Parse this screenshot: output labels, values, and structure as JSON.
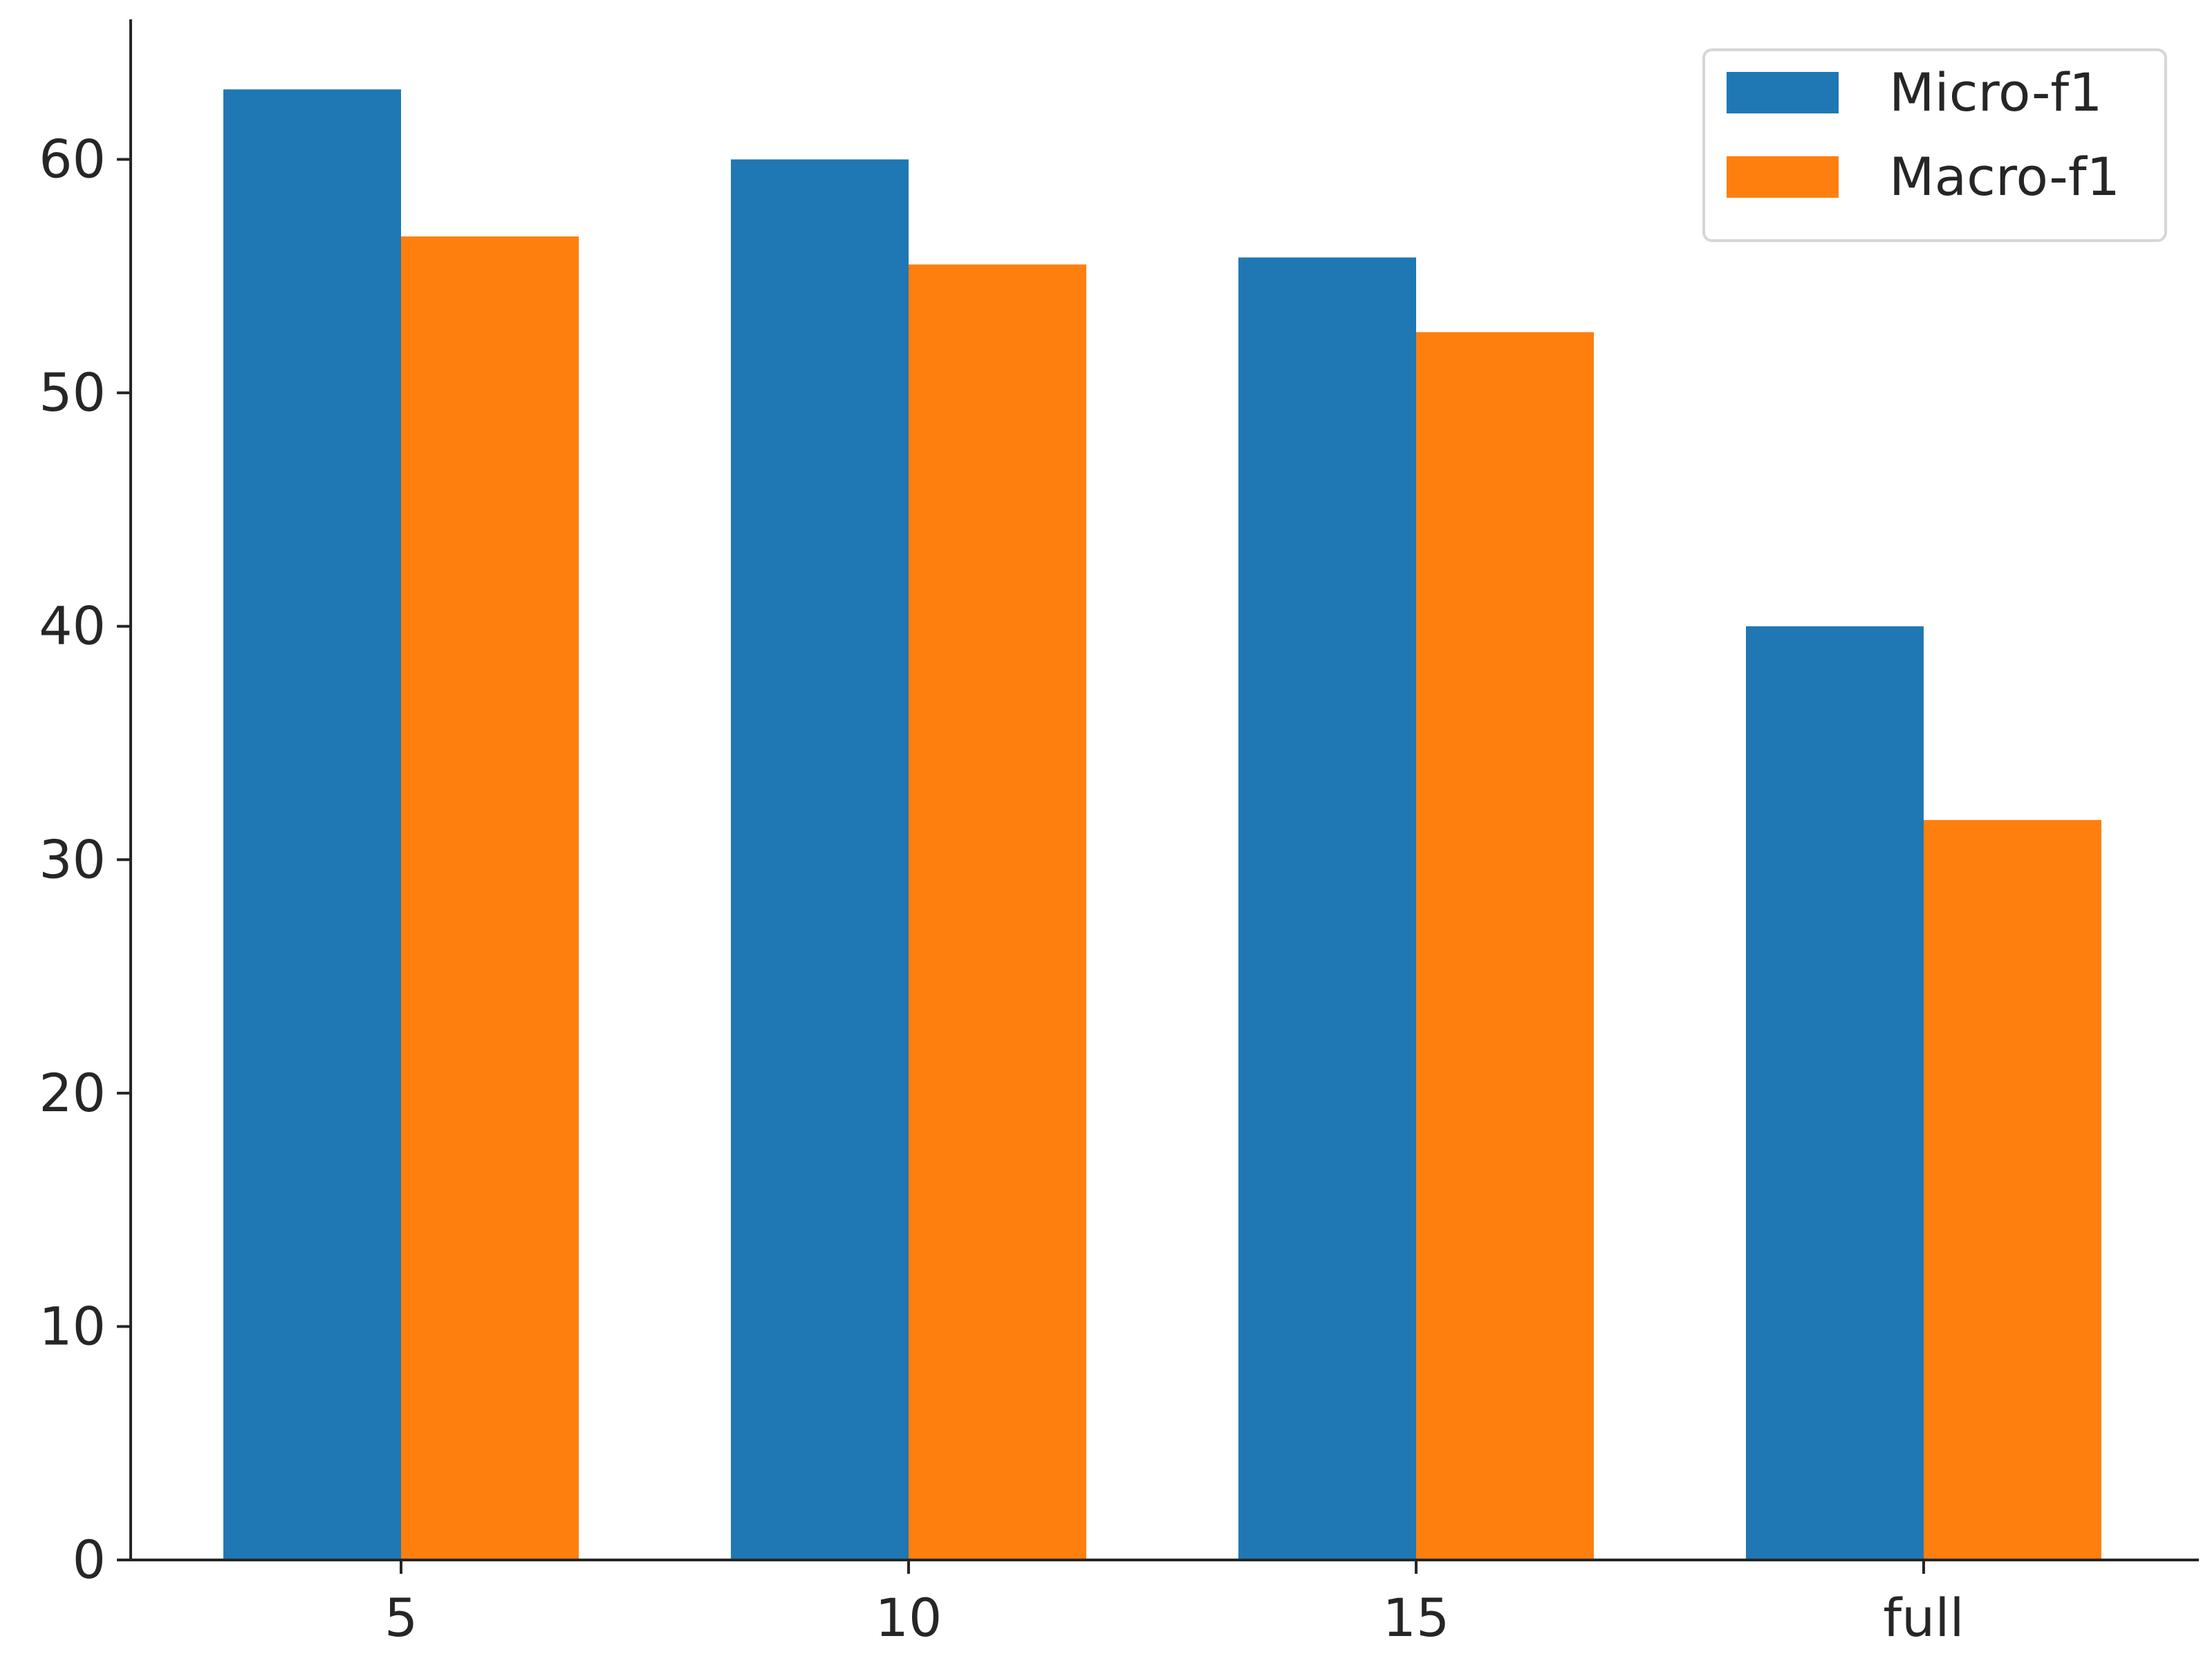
{
  "chart_data": {
    "type": "bar",
    "title": "",
    "xlabel": "",
    "ylabel": "",
    "categories": [
      "5",
      "10",
      "15",
      "full"
    ],
    "series": [
      {
        "name": "Micro-f1",
        "color": "#1f77b4",
        "values": [
          63.0,
          60.0,
          55.8,
          40.0
        ]
      },
      {
        "name": "Macro-f1",
        "color": "#ff7f0e",
        "values": [
          56.7,
          55.5,
          52.6,
          31.7
        ]
      }
    ],
    "ylim": [
      0,
      66
    ],
    "yticks": [
      0,
      10,
      20,
      30,
      40,
      50,
      60
    ],
    "grid": false,
    "legend_position": "top-right"
  }
}
